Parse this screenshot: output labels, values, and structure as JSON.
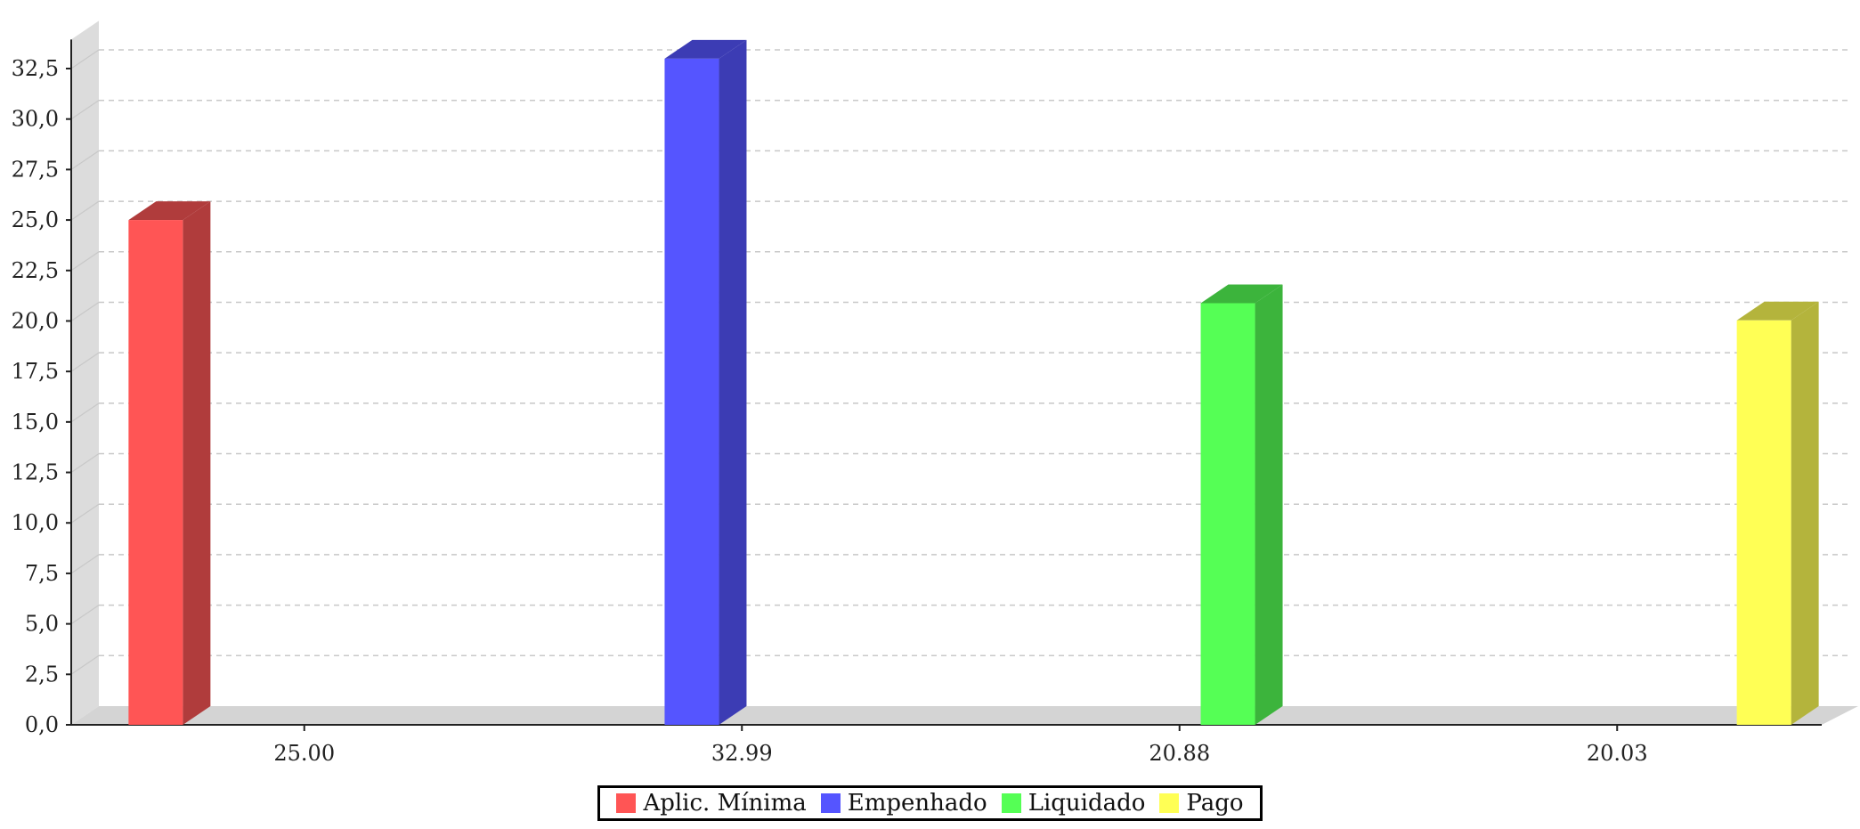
{
  "chart_data": {
    "type": "bar",
    "categories": [
      "25.00",
      "32.99",
      "20.88",
      "20.03"
    ],
    "series": [
      {
        "name": "Aplic. Mínima",
        "color": "#ff5555",
        "side_color": "#b03c3c",
        "values": [
          25.0,
          null,
          null,
          null
        ]
      },
      {
        "name": "Empenhado",
        "color": "#5555ff",
        "side_color": "#3c3cb4",
        "values": [
          null,
          32.99,
          null,
          null
        ]
      },
      {
        "name": "Liquidado",
        "color": "#55ff55",
        "side_color": "#3cb43c",
        "values": [
          null,
          null,
          20.88,
          null
        ]
      },
      {
        "name": "Pago",
        "color": "#ffff55",
        "side_color": "#b4b43c",
        "values": [
          null,
          null,
          null,
          20.03
        ]
      }
    ],
    "title": "",
    "xlabel": "",
    "ylabel": "",
    "ylim": [
      0,
      33.5
    ],
    "yticks": [
      0,
      2.5,
      5,
      7.5,
      10,
      12.5,
      15,
      17.5,
      20,
      22.5,
      25,
      27.5,
      30,
      32.5
    ],
    "ytick_labels": [
      "0,0",
      "2,5",
      "5,0",
      "7,5",
      "10,0",
      "12,5",
      "15,0",
      "17,5",
      "20,0",
      "22,5",
      "25,0",
      "27,5",
      "30,0",
      "32,5"
    ],
    "grid": true,
    "three_d": true,
    "legend_position": "bottom"
  }
}
